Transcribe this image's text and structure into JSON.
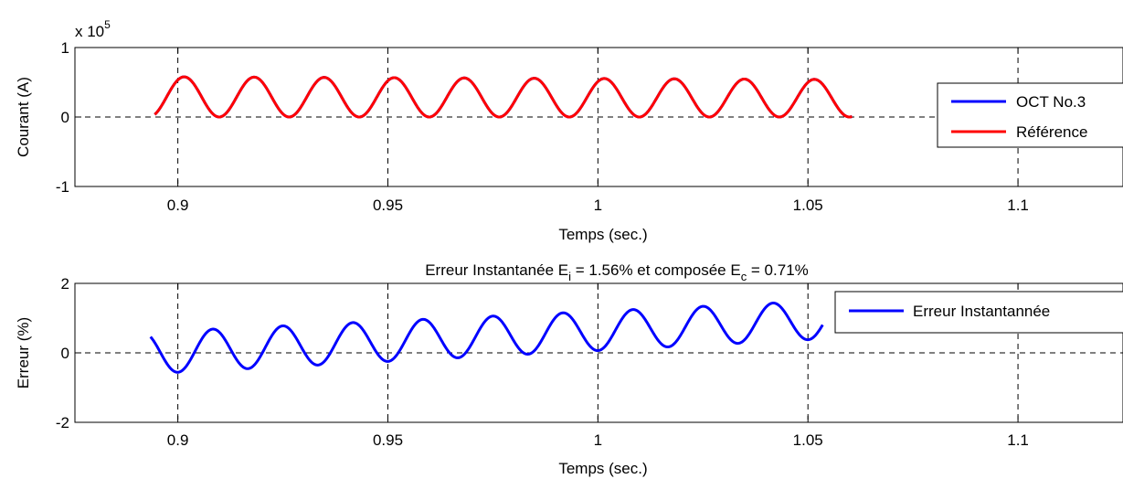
{
  "chart_data": [
    {
      "type": "line",
      "title": "",
      "xlabel": "Temps (sec.)",
      "ylabel": "Courant (A)",
      "y_multiplier_prefix": "x 10",
      "y_multiplier_exponent": "5",
      "xlim": [
        0.8755,
        1.125
      ],
      "ylim": [
        -1,
        1
      ],
      "x_ticks": [
        0.9,
        0.95,
        1,
        1.05,
        1.1
      ],
      "x_tick_labels": [
        "0.9",
        "0.95",
        "1",
        "1.05",
        "1.1"
      ],
      "y_ticks": [
        -1,
        0,
        1
      ],
      "y_tick_labels": [
        "-1",
        "0",
        "1"
      ],
      "grid": true,
      "legend_position": "right",
      "series": [
        {
          "name": "OCT No.3",
          "color": "#0000ff",
          "x_start": 0.8945,
          "x_end": 1.0605,
          "period": 0.01667,
          "peak_x": 0.9015,
          "min": 0.0,
          "max": [
            0.58,
            0.54
          ],
          "units": "x 10^5 A"
        },
        {
          "name": "Référence",
          "color": "#ff0000",
          "x_start": 0.8945,
          "x_end": 1.0605,
          "period": 0.01667,
          "peak_x": 0.9015,
          "min": 0.0,
          "max": [
            0.58,
            0.54
          ],
          "units": "x 10^5 A"
        }
      ]
    },
    {
      "type": "line",
      "title_text": "Erreur Instantanée E",
      "title_sub1": "i",
      "title_mid": " = 1.56% et composée E",
      "title_sub2": "c",
      "title_end": " = 0.71%",
      "xlabel": "Temps (sec.)",
      "ylabel": "Erreur (%)",
      "xlim": [
        0.8755,
        1.125
      ],
      "ylim": [
        -2,
        2
      ],
      "x_ticks": [
        0.9,
        0.95,
        1,
        1.05,
        1.1
      ],
      "x_tick_labels": [
        "0.9",
        "0.95",
        "1",
        "1.05",
        "1.1"
      ],
      "y_ticks": [
        -2,
        0,
        2
      ],
      "y_tick_labels": [
        "-2",
        "0",
        "2"
      ],
      "grid": true,
      "legend_position": "top-right",
      "series": [
        {
          "name": "Erreur Instantannée",
          "color": "#0000ff",
          "x_start": 0.8935,
          "x_end": 1.0535,
          "period": 0.01667,
          "min_x": 0.9,
          "min_start": -0.6,
          "min_end": 0.4,
          "max_start": 0.6,
          "max_end": 1.5
        }
      ]
    }
  ]
}
